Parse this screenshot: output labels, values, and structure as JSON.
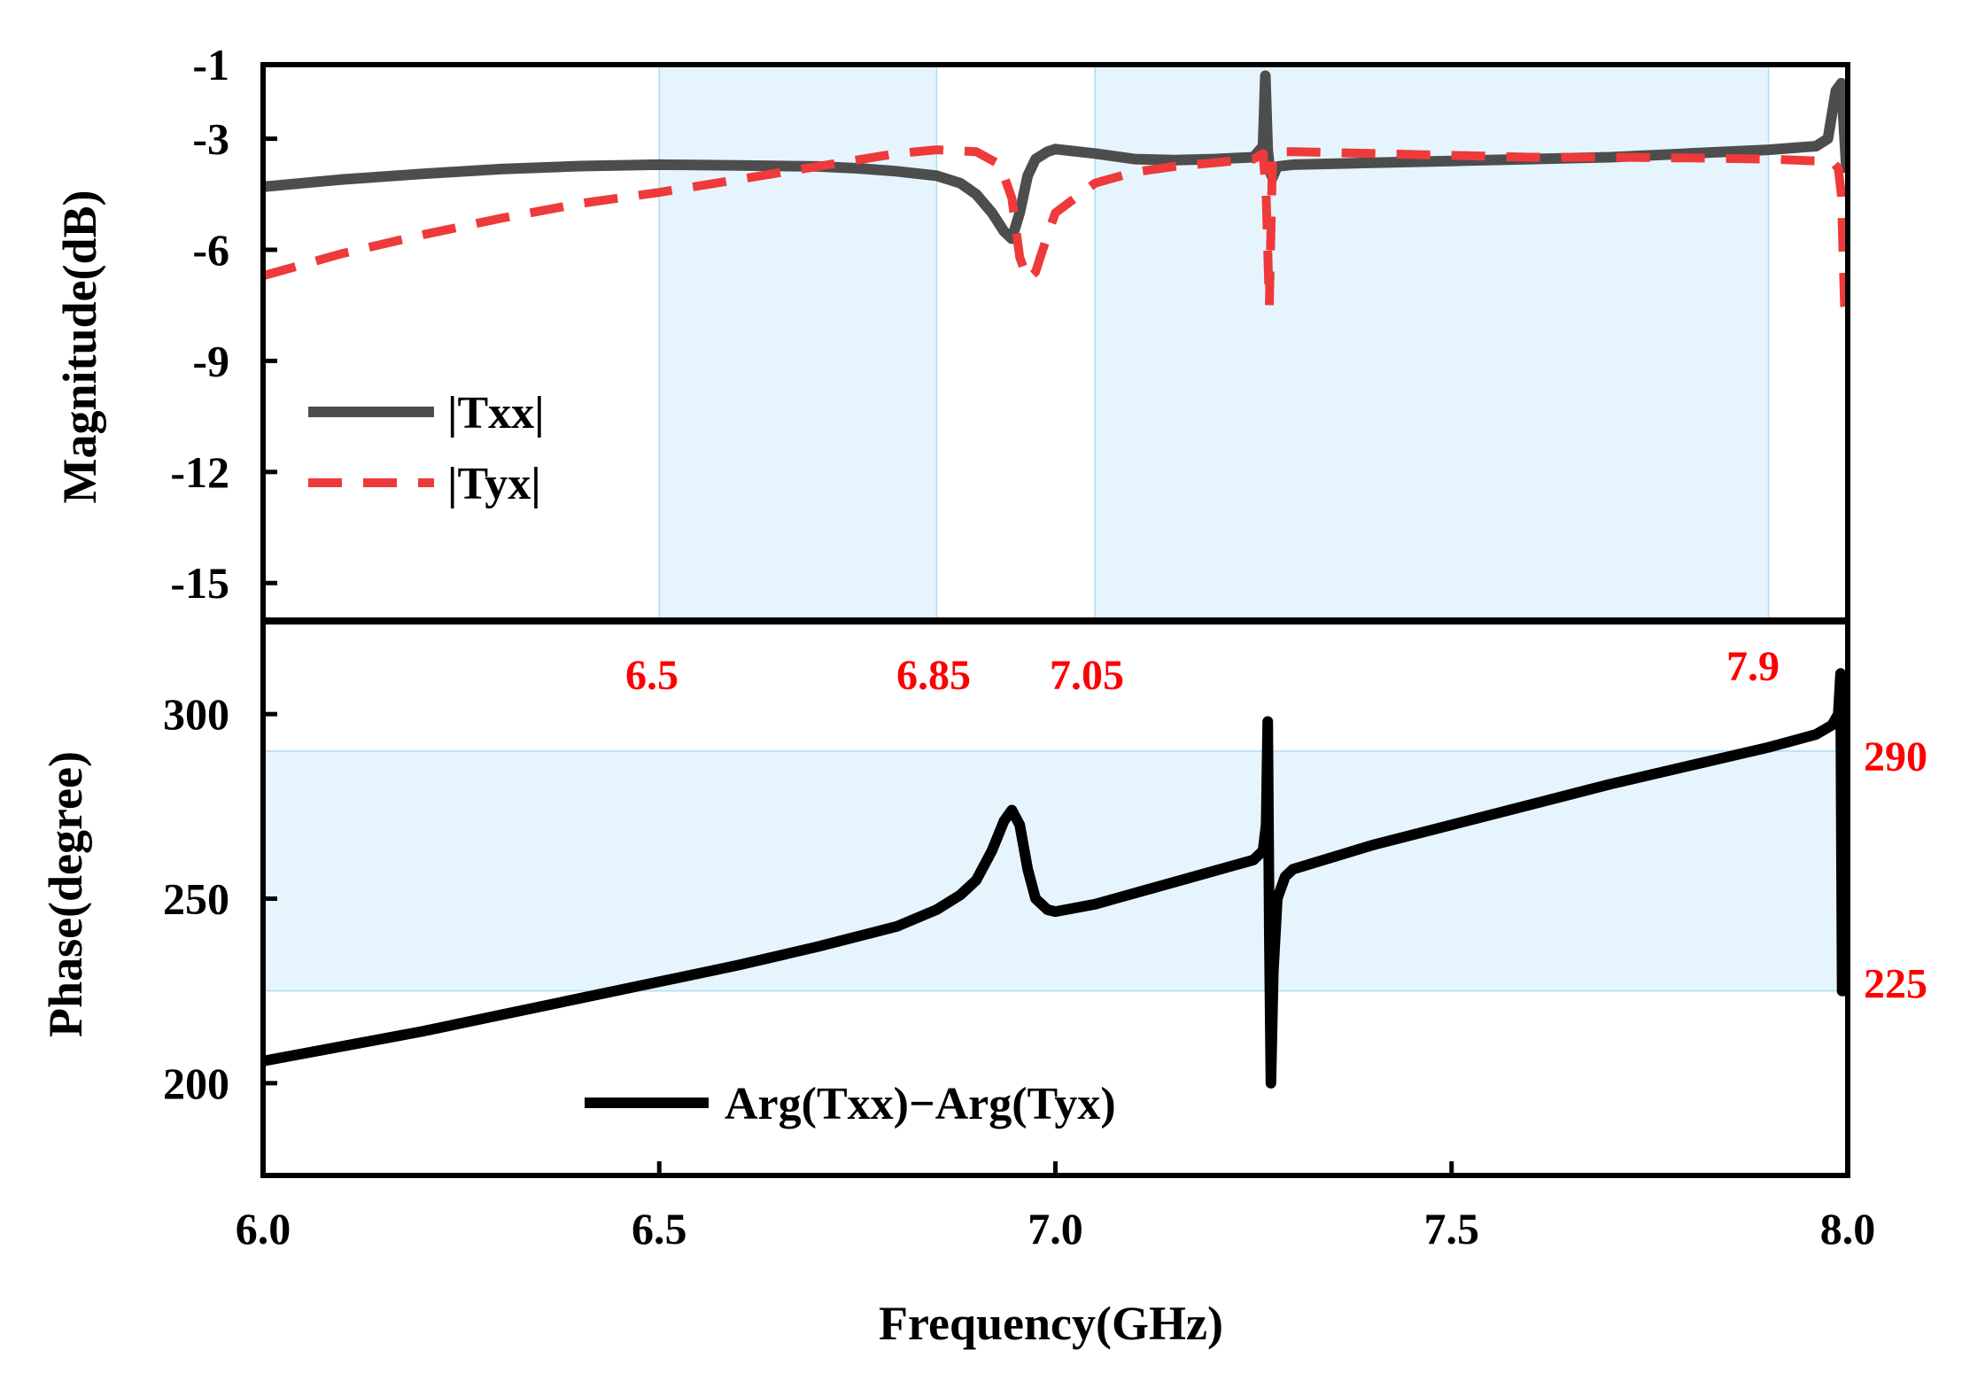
{
  "chart_data": [
    {
      "type": "line",
      "panel": "top",
      "xlabel": "Frequency(GHz)",
      "ylabel": "Magnitude(dB)",
      "xlim": [
        6.0,
        8.0
      ],
      "ylim": [
        -16.0,
        -1.0
      ],
      "yticks": [
        -1,
        -3,
        -6,
        -9,
        -12,
        -15
      ],
      "ytick_labels": [
        "-1",
        "-3",
        "-6",
        "-9",
        "-12",
        "-15"
      ],
      "shaded_bands": [
        {
          "x_from": 6.5,
          "x_to": 6.85,
          "color": "#e6f5fd",
          "edge": "#aedcf2"
        },
        {
          "x_from": 7.05,
          "x_to": 7.9,
          "color": "#e6f5fd",
          "edge": "#aedcf2"
        }
      ],
      "series": [
        {
          "name": "|Txx|",
          "label": "|Txx|",
          "color": "#4d4d4d",
          "dash": "solid",
          "x": [
            6.0,
            6.1,
            6.2,
            6.3,
            6.4,
            6.5,
            6.6,
            6.7,
            6.75,
            6.8,
            6.85,
            6.88,
            6.9,
            6.92,
            6.935,
            6.945,
            6.955,
            6.965,
            6.975,
            6.99,
            7.0,
            7.05,
            7.1,
            7.15,
            7.2,
            7.25,
            7.262,
            7.265,
            7.268,
            7.271,
            7.274,
            7.28,
            7.3,
            7.4,
            7.5,
            7.6,
            7.7,
            7.8,
            7.9,
            7.96,
            7.975,
            7.985,
            7.992,
            7.998,
            8.0
          ],
          "y": [
            -4.3,
            -4.1,
            -3.95,
            -3.82,
            -3.74,
            -3.7,
            -3.72,
            -3.75,
            -3.8,
            -3.88,
            -4.0,
            -4.2,
            -4.5,
            -5.0,
            -5.5,
            -5.7,
            -5.0,
            -4.0,
            -3.55,
            -3.35,
            -3.28,
            -3.4,
            -3.55,
            -3.58,
            -3.55,
            -3.5,
            -3.2,
            -1.3,
            -3.3,
            -3.9,
            -4.05,
            -3.75,
            -3.7,
            -3.65,
            -3.6,
            -3.55,
            -3.5,
            -3.4,
            -3.3,
            -3.2,
            -3.0,
            -1.7,
            -1.5,
            -3.7,
            -3.9
          ]
        },
        {
          "name": "|Tyx|",
          "label": "|Tyx|",
          "color": "#ee3a3a",
          "dash": "dashed",
          "x": [
            6.0,
            6.1,
            6.2,
            6.3,
            6.4,
            6.5,
            6.6,
            6.7,
            6.8,
            6.85,
            6.9,
            6.93,
            6.945,
            6.955,
            6.965,
            6.975,
            6.99,
            7.0,
            7.05,
            7.1,
            7.15,
            7.2,
            7.25,
            7.262,
            7.266,
            7.27,
            7.274,
            7.28,
            7.3,
            7.4,
            7.5,
            7.6,
            7.7,
            7.8,
            7.9,
            7.96,
            7.982,
            7.988,
            7.992,
            7.996,
            8.0
          ],
          "y": [
            -6.7,
            -6.1,
            -5.6,
            -5.15,
            -4.75,
            -4.45,
            -4.1,
            -3.75,
            -3.4,
            -3.3,
            -3.35,
            -3.7,
            -4.6,
            -6.2,
            -6.8,
            -6.6,
            -5.6,
            -5.0,
            -4.2,
            -3.9,
            -3.75,
            -3.65,
            -3.55,
            -3.4,
            -4.5,
            -7.5,
            -3.5,
            -3.35,
            -3.35,
            -3.4,
            -3.45,
            -3.5,
            -3.5,
            -3.52,
            -3.55,
            -3.6,
            -3.65,
            -3.8,
            -4.5,
            -7.5,
            -8.0
          ]
        }
      ]
    },
    {
      "type": "line",
      "panel": "bottom",
      "xlabel": "Frequency(GHz)",
      "ylabel": "Phase(degree)",
      "xlim": [
        6.0,
        8.0
      ],
      "ylim": [
        175,
        325
      ],
      "xticks": [
        6.0,
        6.5,
        7.0,
        7.5,
        8.0
      ],
      "xtick_labels": [
        "6.0",
        "6.5",
        "7.0",
        "7.5",
        "8.0"
      ],
      "yticks": [
        200,
        250,
        300
      ],
      "ytick_labels": [
        "200",
        "250",
        "300"
      ],
      "shaded_band": {
        "y_from": 225,
        "y_to": 290,
        "color": "#e6f5fd",
        "edge": "#aedcf2"
      },
      "series": [
        {
          "name": "Arg(Txx)−Arg(Tyx)",
          "label": "Arg(Txx)−Arg(Tyx)",
          "color": "#000000",
          "dash": "solid",
          "x": [
            6.0,
            6.1,
            6.2,
            6.3,
            6.4,
            6.5,
            6.6,
            6.7,
            6.8,
            6.85,
            6.88,
            6.9,
            6.92,
            6.935,
            6.945,
            6.955,
            6.965,
            6.975,
            6.99,
            7.0,
            7.05,
            7.1,
            7.15,
            7.2,
            7.25,
            7.262,
            7.266,
            7.268,
            7.27,
            7.272,
            7.275,
            7.28,
            7.29,
            7.3,
            7.4,
            7.5,
            7.6,
            7.7,
            7.8,
            7.9,
            7.96,
            7.98,
            7.988,
            7.991,
            7.993,
            7.995,
            7.997,
            7.999,
            8.0
          ],
          "y": [
            206,
            210,
            214,
            218.5,
            223,
            227.5,
            232,
            237,
            242.5,
            247,
            251,
            255,
            263,
            271,
            274,
            270,
            258,
            250,
            247,
            246.5,
            248.5,
            251.5,
            254.5,
            257.5,
            260.5,
            263,
            270,
            298,
            240,
            200,
            230,
            250,
            256,
            258,
            264.5,
            270,
            275.5,
            281,
            286,
            291,
            294.5,
            297,
            300,
            311,
            225,
            310,
            225,
            300,
            296
          ]
        }
      ]
    }
  ],
  "annotations": {
    "x_values": [
      "6.5",
      "6.85",
      "7.05",
      "7.9"
    ],
    "phase_values": [
      "290",
      "225"
    ]
  }
}
